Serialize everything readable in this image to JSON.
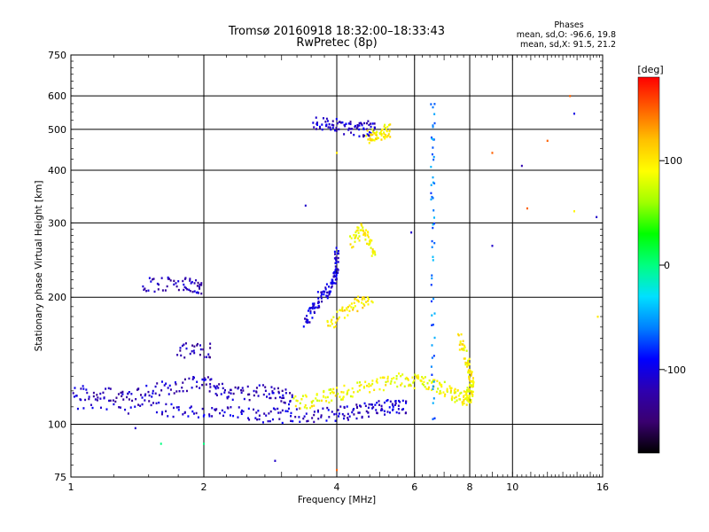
{
  "chart_data": {
    "type": "scatter",
    "title": "Tromsø 20160918 18:32:00–18:33:43",
    "subtitle": "RwPretec (8p)",
    "xlabel": "Frequency [MHz]",
    "ylabel": "Stationary phase Virtual Height [km]",
    "x_scale": "log",
    "y_scale": "log",
    "xlim": [
      1,
      16
    ],
    "ylim": [
      75,
      750
    ],
    "x_ticks": [
      1,
      2,
      4,
      6,
      8,
      10,
      16
    ],
    "x_tick_labels": [
      "1",
      "2",
      "4",
      "6",
      "8",
      "10",
      "16"
    ],
    "y_ticks": [
      75,
      100,
      200,
      300,
      400,
      500,
      600,
      750
    ],
    "y_tick_labels": [
      "75",
      "100",
      "200",
      "300",
      "400",
      "500",
      "600",
      "750"
    ],
    "grid": true,
    "legend": {
      "title": "Phases",
      "lines": [
        "mean, sd,O: -96.6, 19.8",
        "mean, sd,X:  91.5, 21.2"
      ],
      "placement": "top-right"
    },
    "colorbar": {
      "label": "[deg]",
      "range": [
        -180,
        180
      ],
      "ticks": [
        -100,
        0,
        100
      ],
      "tick_labels": [
        "-100",
        "0",
        "100"
      ],
      "colormap": [
        "#000000",
        "#3a0070",
        "#2e00b0",
        "#0000ff",
        "#0080ff",
        "#00e0ff",
        "#00ff80",
        "#00ff00",
        "#a0ff00",
        "#ffff00",
        "#ffc000",
        "#ff6000",
        "#ff0000"
      ],
      "placement": "right"
    },
    "series": [
      {
        "trace": "F-region O-mode (low band)",
        "phase": -110,
        "segments": [
          [
            1.0,
            112
          ],
          [
            1.5,
            110
          ],
          [
            2.0,
            107
          ],
          [
            2.6,
            105
          ],
          [
            3.2,
            105
          ],
          [
            4.0,
            106
          ],
          [
            4.6,
            108
          ],
          [
            5.2,
            110
          ],
          [
            5.8,
            110
          ]
        ]
      },
      {
        "trace": "F-region scattered (upper band)",
        "phase": -115,
        "segments": [
          [
            1.0,
            120
          ],
          [
            1.3,
            117
          ],
          [
            1.6,
            122
          ],
          [
            2.0,
            126
          ],
          [
            2.3,
            118
          ],
          [
            2.8,
            120
          ],
          [
            3.2,
            115
          ]
        ]
      },
      {
        "trace": "echo at ~150 km",
        "phase": -120,
        "segments": [
          [
            1.75,
            150
          ],
          [
            2.1,
            150
          ]
        ]
      },
      {
        "trace": "O-mode ~200 km cusp",
        "phase": -105,
        "segments": [
          [
            3.4,
            175
          ],
          [
            3.6,
            195
          ],
          [
            3.85,
            210
          ],
          [
            4.0,
            230
          ],
          [
            4.0,
            255
          ]
        ]
      },
      {
        "trace": "X-mode low",
        "phase": 90,
        "segments": [
          [
            3.2,
            112
          ],
          [
            3.7,
            115
          ],
          [
            4.2,
            120
          ],
          [
            5.0,
            125
          ],
          [
            5.8,
            128
          ],
          [
            6.5,
            125
          ],
          [
            7.2,
            120
          ],
          [
            7.8,
            115
          ],
          [
            8.0,
            118
          ]
        ]
      },
      {
        "trace": "X-mode nose",
        "phase": 95,
        "segments": [
          [
            7.6,
            160
          ],
          [
            7.9,
            140
          ],
          [
            8.1,
            125
          ],
          [
            8.0,
            115
          ]
        ]
      },
      {
        "trace": "X-mode ~200 km",
        "phase": 100,
        "segments": [
          [
            3.8,
            170
          ],
          [
            4.3,
            190
          ],
          [
            4.8,
            200
          ]
        ]
      },
      {
        "trace": "X-mode ~250-300 km",
        "phase": 95,
        "segments": [
          [
            4.3,
            270
          ],
          [
            4.6,
            290
          ],
          [
            4.9,
            250
          ]
        ]
      },
      {
        "trace": "O-mode ~500 km",
        "phase": -110,
        "segments": [
          [
            3.55,
            520
          ],
          [
            4.0,
            510
          ],
          [
            4.5,
            500
          ],
          [
            4.9,
            505
          ]
        ]
      },
      {
        "trace": "X-mode ~500 km",
        "phase": 95,
        "segments": [
          [
            4.7,
            480
          ],
          [
            5.0,
            490
          ],
          [
            5.3,
            500
          ]
        ]
      },
      {
        "trace": "O-mode ~215 km",
        "phase": -120,
        "segments": [
          [
            1.45,
            215
          ],
          [
            1.8,
            215
          ],
          [
            2.0,
            210
          ]
        ]
      },
      {
        "trace": "Vertical streak ~6.6 MHz",
        "phase": -60,
        "segments": [
          [
            6.6,
            100
          ],
          [
            6.6,
            300
          ],
          [
            6.6,
            600
          ]
        ]
      }
    ],
    "scattered_points": [
      {
        "x": 13.5,
        "y": 600,
        "phase": 150
      },
      {
        "x": 12.0,
        "y": 470,
        "phase": 150
      },
      {
        "x": 9.0,
        "y": 440,
        "phase": 150
      },
      {
        "x": 10.5,
        "y": 410,
        "phase": -120
      },
      {
        "x": 10.8,
        "y": 325,
        "phase": 150
      },
      {
        "x": 13.8,
        "y": 320,
        "phase": 95
      },
      {
        "x": 15.5,
        "y": 310,
        "phase": -110
      },
      {
        "x": 13.8,
        "y": 545,
        "phase": -100
      },
      {
        "x": 9.0,
        "y": 265,
        "phase": -110
      },
      {
        "x": 15.6,
        "y": 180,
        "phase": 100
      },
      {
        "x": 1.6,
        "y": 90,
        "phase": 0
      },
      {
        "x": 2.0,
        "y": 90,
        "phase": 0
      },
      {
        "x": 1.4,
        "y": 98,
        "phase": -110
      },
      {
        "x": 2.9,
        "y": 82,
        "phase": -110
      },
      {
        "x": 4.0,
        "y": 78,
        "phase": 150
      },
      {
        "x": 3.4,
        "y": 330,
        "phase": -110
      },
      {
        "x": 4.0,
        "y": 440,
        "phase": 100
      },
      {
        "x": 5.9,
        "y": 285,
        "phase": -110
      }
    ]
  }
}
